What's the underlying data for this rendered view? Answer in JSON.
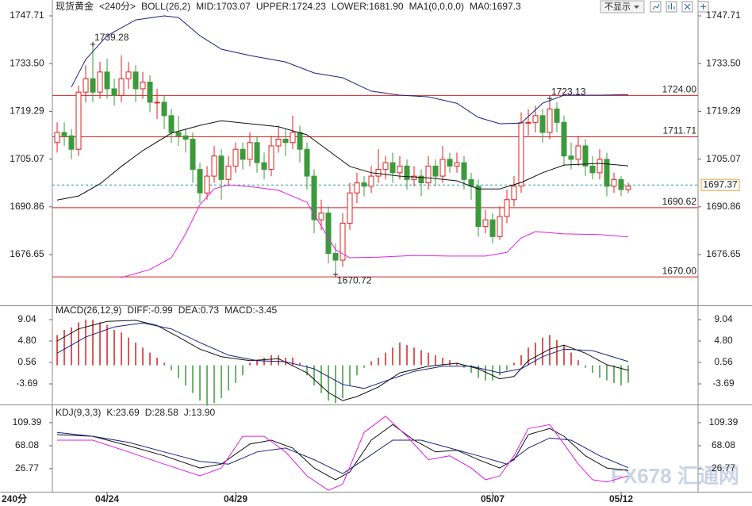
{
  "toolbar": {
    "button": "不显示"
  },
  "watermark": "FX678 汇通网",
  "chart_data": [
    {
      "type": "candlestick",
      "title": "现货黄金",
      "subtitle": "<240分>",
      "indicator": "BOLL(26,2)",
      "extras": [
        "MA1(0,0,0,0)",
        "MA0:1697.3"
      ],
      "xlim": [
        -0.67,
        89.78
      ],
      "ylim": [
        1661.54,
        1750.54
      ],
      "yticks": [
        1747.71,
        {
          "value": 1733.5,
          "label": "1733.50"
        },
        1719.29,
        1705.07,
        1690.86,
        1676.65
      ],
      "levels": [
        {
          "value": 1724,
          "label": "1724.00"
        },
        1711.71,
        1690.62,
        {
          "value": 1670,
          "label": "1670.00"
        }
      ],
      "level_color": "#d42020",
      "last_price": 1697.37,
      "last_price_color": "#2a9d9d",
      "annotations": [
        1739.28,
        1670.72,
        1723.13
      ],
      "up_color": "#e0201f",
      "down_color": "#3c9a3c",
      "candles": [
        [
          1710,
          1716,
          1707,
          1713
        ],
        [
          1713,
          1716,
          1709,
          1712
        ],
        [
          1712,
          1714,
          1705,
          1708
        ],
        [
          1708,
          1727,
          1706,
          1725
        ],
        [
          1725,
          1733,
          1722,
          1729
        ],
        [
          1729,
          1739.28,
          1722,
          1725
        ],
        [
          1725,
          1734,
          1723,
          1731
        ],
        [
          1731,
          1735,
          1723,
          1726
        ],
        [
          1726,
          1729,
          1721,
          1724
        ],
        [
          1724,
          1736,
          1722,
          1729
        ],
        [
          1729,
          1734,
          1726,
          1731
        ],
        [
          1731,
          1733,
          1722,
          1726
        ],
        [
          1726,
          1731,
          1723,
          1728
        ],
        [
          1728,
          1730,
          1719,
          1722
        ],
        [
          1722,
          1726,
          1717,
          1722
        ],
        [
          1722,
          1724,
          1714,
          1718
        ],
        [
          1718,
          1720,
          1710,
          1713
        ],
        [
          1713,
          1718,
          1709,
          1712
        ],
        [
          1712,
          1714,
          1707,
          1711
        ],
        [
          1711,
          1713,
          1698,
          1702
        ],
        [
          1702,
          1704,
          1692,
          1695
        ],
        [
          1695,
          1703,
          1693,
          1700
        ],
        [
          1700,
          1709,
          1698,
          1706
        ],
        [
          1706,
          1708,
          1693,
          1699
        ],
        [
          1699,
          1706,
          1697,
          1703
        ],
        [
          1703,
          1710,
          1701,
          1708
        ],
        [
          1708,
          1710,
          1702,
          1705
        ],
        [
          1705,
          1713,
          1703,
          1710
        ],
        [
          1710,
          1712,
          1701,
          1704
        ],
        [
          1704,
          1707,
          1699,
          1702
        ],
        [
          1702,
          1712,
          1700,
          1709
        ],
        [
          1709,
          1715,
          1707,
          1711
        ],
        [
          1711,
          1714,
          1706,
          1710
        ],
        [
          1710,
          1718,
          1708,
          1713
        ],
        [
          1713,
          1715,
          1704,
          1708
        ],
        [
          1708,
          1710,
          1696,
          1700
        ],
        [
          1700,
          1702,
          1683,
          1687
        ],
        [
          1687,
          1693,
          1684,
          1689
        ],
        [
          1689,
          1691,
          1674,
          1677
        ],
        [
          1677,
          1680,
          1670.72,
          1675
        ],
        [
          1675,
          1689,
          1673,
          1686
        ],
        [
          1686,
          1698,
          1684,
          1695
        ],
        [
          1695,
          1701,
          1692,
          1698
        ],
        [
          1698,
          1700,
          1694,
          1697
        ],
        [
          1697,
          1703,
          1695,
          1700
        ],
        [
          1700,
          1708,
          1698,
          1702
        ],
        [
          1702,
          1706,
          1699,
          1704
        ],
        [
          1704,
          1707,
          1698,
          1701
        ],
        [
          1701,
          1706,
          1699,
          1703
        ],
        [
          1703,
          1705,
          1696,
          1699
        ],
        [
          1699,
          1703,
          1697,
          1700
        ],
        [
          1700,
          1702,
          1694,
          1698
        ],
        [
          1698,
          1706,
          1696,
          1703
        ],
        [
          1703,
          1705,
          1697,
          1700
        ],
        [
          1700,
          1709,
          1698,
          1705
        ],
        [
          1705,
          1707,
          1701,
          1703
        ],
        [
          1703,
          1707,
          1701,
          1704
        ],
        [
          1704,
          1706,
          1696,
          1699
        ],
        [
          1699,
          1701,
          1693,
          1697
        ],
        [
          1697,
          1699,
          1682,
          1685
        ],
        [
          1685,
          1690,
          1683,
          1687
        ],
        [
          1687,
          1689,
          1680,
          1682
        ],
        [
          1682,
          1691,
          1681,
          1688
        ],
        [
          1688,
          1696,
          1686,
          1693
        ],
        [
          1693,
          1700,
          1691,
          1697
        ],
        [
          1697,
          1719,
          1695,
          1716
        ],
        [
          1716,
          1720,
          1712,
          1716
        ],
        [
          1716,
          1721,
          1713,
          1718
        ],
        [
          1718,
          1720,
          1710,
          1713
        ],
        [
          1713,
          1723.13,
          1711,
          1720
        ],
        [
          1720,
          1722,
          1713,
          1716
        ],
        [
          1716,
          1718,
          1703,
          1706
        ],
        [
          1706,
          1710,
          1702,
          1705
        ],
        [
          1705,
          1712,
          1703,
          1709
        ],
        [
          1709,
          1711,
          1700,
          1703
        ],
        [
          1703,
          1706,
          1699,
          1701
        ],
        [
          1701,
          1708,
          1699,
          1705
        ],
        [
          1705,
          1707,
          1694,
          1697
        ],
        [
          1697,
          1701,
          1695,
          1699
        ],
        [
          1699,
          1700,
          1694,
          1696
        ],
        [
          1696,
          1698,
          1695,
          1697
        ]
      ],
      "series": [
        {
          "name": "MID:1703.07",
          "color": "#111111",
          "x": [
            0,
            3,
            6,
            9,
            12,
            16,
            20,
            23,
            27,
            31,
            35,
            38,
            41,
            44,
            48,
            52,
            56,
            59,
            62,
            65,
            68,
            71,
            76,
            80
          ],
          "values": [
            1692.9,
            1694.1,
            1697.7,
            1702.9,
            1707.6,
            1712.8,
            1715.1,
            1716.5,
            1715.6,
            1714.7,
            1712.3,
            1707.6,
            1702.9,
            1701.0,
            1700.0,
            1699.5,
            1698.6,
            1696.2,
            1696.2,
            1698.1,
            1701.0,
            1703.3,
            1703.8,
            1703.07
          ]
        },
        {
          "name": "UPPER:1724.23",
          "color": "#1a237e",
          "x": [
            2,
            4,
            7,
            11,
            15,
            17,
            20,
            23,
            27,
            32,
            36,
            40,
            44,
            48,
            52,
            56,
            59,
            62,
            65,
            68,
            71,
            76,
            80
          ],
          "values": [
            1726.5,
            1734.7,
            1741.8,
            1746.5,
            1747.7,
            1747.2,
            1741.8,
            1737.8,
            1735.9,
            1734.0,
            1730.7,
            1729.3,
            1725.3,
            1724.1,
            1723.6,
            1721.7,
            1717.5,
            1715.6,
            1715.8,
            1721.7,
            1724.1,
            1724.1,
            1724.23
          ]
        },
        {
          "name": "LOWER:1681.90",
          "color": "#e020e0",
          "x": [
            9,
            13,
            16,
            18,
            20,
            22,
            24,
            27,
            31,
            35,
            37,
            39,
            41,
            45,
            50,
            55,
            60,
            63,
            65,
            67,
            71,
            76,
            80
          ],
          "values": [
            1669.8,
            1672.2,
            1675.7,
            1682.8,
            1691.5,
            1696.2,
            1697.4,
            1696.9,
            1695.8,
            1692.2,
            1685.1,
            1678.1,
            1675.7,
            1675.9,
            1676.4,
            1676.2,
            1676.2,
            1677.3,
            1681.6,
            1683.5,
            1682.8,
            1682.6,
            1681.9
          ]
        }
      ]
    },
    {
      "type": "bar",
      "title": "MACD(26,12,9)",
      "xlim": [
        -0.67,
        89.78
      ],
      "ylim": [
        -7.77,
        10.3
      ],
      "yticks": [
        9.04,
        {
          "value": 4.8,
          "label": "4.80"
        },
        0.56,
        -3.69
      ],
      "series": [
        {
          "name": "DIFF:-0.99",
          "color": "#111111",
          "x": [
            0,
            3,
            7,
            11,
            14,
            17,
            20,
            23,
            27,
            31,
            35,
            38,
            40,
            42,
            45,
            48,
            52,
            56,
            59,
            62,
            64,
            66,
            69,
            71,
            74,
            77,
            80
          ],
          "values": [
            4.8,
            7.2,
            8.7,
            8.9,
            7.9,
            5.6,
            3.2,
            1.7,
            0.9,
            1.3,
            -1.5,
            -5.4,
            -7.0,
            -6.2,
            -4.3,
            -1.5,
            -0.2,
            0.4,
            -0.7,
            -2.7,
            -2.2,
            0.9,
            3.2,
            4.0,
            2.4,
            0.1,
            -0.99
          ]
        },
        {
          "name": "DEA:0.73",
          "color": "#1a237e",
          "x": [
            0,
            4,
            8,
            12,
            16,
            20,
            24,
            28,
            32,
            36,
            40,
            43,
            46,
            50,
            54,
            58,
            62,
            65,
            68,
            71,
            75,
            80
          ],
          "values": [
            2.4,
            5.6,
            7.6,
            8.4,
            7.2,
            4.5,
            2.0,
            0.9,
            0.7,
            -0.7,
            -3.8,
            -4.6,
            -3.1,
            -1.2,
            -0.2,
            -0.2,
            -1.5,
            -0.7,
            1.7,
            3.2,
            2.9,
            0.73
          ]
        }
      ],
      "bars": {
        "name": "MACD:-3.45",
        "color": "#e020e0",
        "up_color": "#d42020",
        "down_color": "#3c9a3c",
        "values": [
          6,
          7,
          7.5,
          8.5,
          9,
          9,
          8.5,
          8,
          7,
          6.5,
          5.5,
          4.5,
          3.5,
          2.5,
          1.5,
          0.5,
          -1,
          -2.5,
          -4,
          -5.5,
          -7,
          -8,
          -7.5,
          -6.5,
          -5,
          -3.5,
          -2,
          0.5,
          1,
          1.5,
          2,
          2,
          1.5,
          1.5,
          0.5,
          -2,
          -4,
          -5.5,
          -7,
          -7.5,
          -6.5,
          -4,
          -2,
          -0.5,
          0.8,
          1.5,
          2.5,
          3.5,
          4.5,
          4,
          3.5,
          3,
          2.5,
          2,
          1.5,
          1,
          0.5,
          -0.5,
          -1.5,
          -2.5,
          -3,
          -3,
          -2,
          -1,
          0.5,
          2,
          3.5,
          4.5,
          5.5,
          6,
          5,
          4,
          2.5,
          1,
          -0.5,
          -1.5,
          -2.5,
          -3,
          -3.5,
          -4,
          -3.45
        ]
      }
    },
    {
      "type": "line",
      "title": "KDJ(9,3,3)",
      "footer": "240分",
      "xlim": [
        -0.67,
        89.78
      ],
      "ylim": [
        -14.54,
        135.0
      ],
      "yticks": [
        109.39,
        68.08,
        26.77
      ],
      "xticks": [
        {
          "value": 7,
          "label": "04/24"
        },
        {
          "value": 25,
          "label": "04/29"
        },
        {
          "value": 61,
          "label": "05/07"
        },
        {
          "value": 79,
          "label": "05/12"
        }
      ],
      "series": [
        {
          "name": "K:23.69",
          "color": "#111111",
          "x": [
            0,
            5,
            10,
            15,
            20,
            23,
            27,
            30,
            33,
            36,
            39,
            41,
            44,
            47,
            50,
            53,
            56,
            59,
            62,
            64,
            66,
            69,
            71,
            74,
            77,
            80
          ],
          "values": [
            88,
            85,
            68,
            50,
            28,
            35,
            71,
            78,
            64,
            28,
            7,
            21,
            78,
            106,
            78,
            57,
            60,
            43,
            28,
            43,
            88,
            99,
            85,
            50,
            28,
            23.69
          ]
        },
        {
          "name": "D:28.58",
          "color": "#1a237e",
          "x": [
            0,
            5,
            10,
            15,
            20,
            24,
            28,
            32,
            36,
            40,
            43,
            47,
            51,
            55,
            59,
            63,
            66,
            69,
            72,
            76,
            80
          ],
          "values": [
            92,
            85,
            74,
            57,
            40,
            35,
            57,
            64,
            43,
            18,
            43,
            78,
            78,
            64,
            50,
            35,
            64,
            82,
            78,
            50,
            28.58
          ]
        },
        {
          "name": "J:13.90",
          "color": "#e020e0",
          "x": [
            0,
            5,
            10,
            15,
            20,
            23,
            26,
            29,
            32,
            35,
            38,
            40,
            43,
            46,
            49,
            52,
            55,
            58,
            60,
            62,
            64,
            66,
            69,
            71,
            73,
            75,
            77,
            80
          ],
          "values": [
            78,
            78,
            57,
            35,
            14,
            28,
            85,
            85,
            57,
            14,
            -12,
            -1,
            92,
            121,
            85,
            43,
            50,
            28,
            7,
            14,
            50,
            99,
            106,
            71,
            35,
            7,
            3,
            13.9
          ]
        }
      ]
    }
  ]
}
